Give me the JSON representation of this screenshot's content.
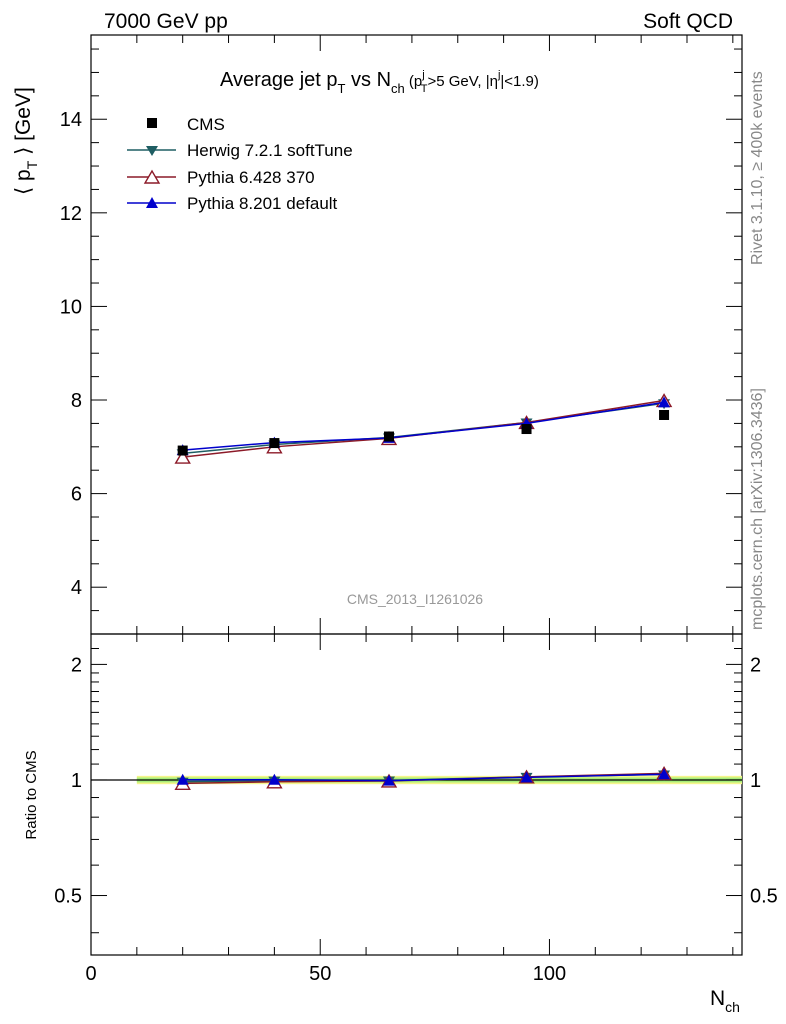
{
  "header": {
    "left": "7000 GeV pp",
    "right": "Soft QCD"
  },
  "side_labels": {
    "rivet": "Rivet 3.1.10, ≥ 400k events",
    "mcplots": "mcplots.cern.ch [arXiv:1306.3436]"
  },
  "chart_data": [
    {
      "type": "scatter",
      "title_parts": {
        "pre": "Average jet p",
        "sub1": "T",
        "mid": " vs N",
        "sub2": "ch",
        "cut": " (p",
        "cut_sup": "j",
        "cut_sub": "T",
        "cut2": ">5 GeV, |η",
        "cut2_sup": "j",
        "cut3": "|<1.9)"
      },
      "ylabel_parts": {
        "pre": "⟨ p",
        "sub": "T",
        "post": " ⟩ [GeV]"
      },
      "watermark": "CMS_2013_I1261026",
      "xlim": [
        0,
        142
      ],
      "ylim": [
        3,
        15.8
      ],
      "yticks": [
        4,
        6,
        8,
        10,
        12,
        14
      ],
      "x": [
        20,
        40,
        65,
        95,
        125
      ],
      "series": [
        {
          "name": "CMS",
          "color": "#000000",
          "marker": "square",
          "values": [
            6.92,
            7.08,
            7.22,
            7.38,
            7.68
          ]
        },
        {
          "name": "Herwig 7.2.1 softTune",
          "color": "#1f5e63",
          "marker": "triangle-down",
          "values": [
            6.86,
            7.05,
            7.2,
            7.52,
            7.93
          ]
        },
        {
          "name": "Pythia 6.428 370",
          "color": "#8c1a28",
          "marker": "triangle-up-open",
          "values": [
            6.78,
            7.0,
            7.18,
            7.52,
            7.99
          ]
        },
        {
          "name": "Pythia 8.201 default",
          "color": "#0000cc",
          "marker": "triangle-up",
          "values": [
            6.93,
            7.09,
            7.19,
            7.5,
            7.95
          ]
        }
      ]
    },
    {
      "type": "line",
      "ylabel": "Ratio to CMS",
      "xlabel": "N",
      "xlabel_sub": "ch",
      "xlim": [
        0,
        142
      ],
      "ylim": [
        0.35,
        2.4
      ],
      "yscale": "log",
      "ytick_labels": [
        {
          "value": 0.5,
          "label": "0.5"
        },
        {
          "value": 1,
          "label": "1"
        },
        {
          "value": 2,
          "label": "2"
        }
      ],
      "xtick_labels": [
        {
          "value": 0,
          "label": "0"
        },
        {
          "value": 50,
          "label": "50"
        },
        {
          "value": 100,
          "label": "100"
        }
      ],
      "band": {
        "x": [
          10,
          142
        ],
        "low": 0.985,
        "high": 1.015,
        "outer_low": 0.975,
        "outer_high": 1.025
      },
      "x": [
        20,
        40,
        65,
        95,
        125
      ],
      "series": [
        {
          "name": "Herwig 7.2.1 softTune",
          "color": "#1f5e63",
          "marker": "triangle-down",
          "values": [
            0.99,
            0.996,
            0.997,
            1.019,
            1.033
          ]
        },
        {
          "name": "Pythia 6.428 370",
          "color": "#8c1a28",
          "marker": "triangle-up-open",
          "values": [
            0.98,
            0.989,
            0.994,
            1.019,
            1.04
          ]
        },
        {
          "name": "Pythia 8.201 default",
          "color": "#0000cc",
          "marker": "triangle-up",
          "values": [
            1.001,
            1.001,
            0.996,
            1.016,
            1.035
          ]
        }
      ]
    }
  ]
}
